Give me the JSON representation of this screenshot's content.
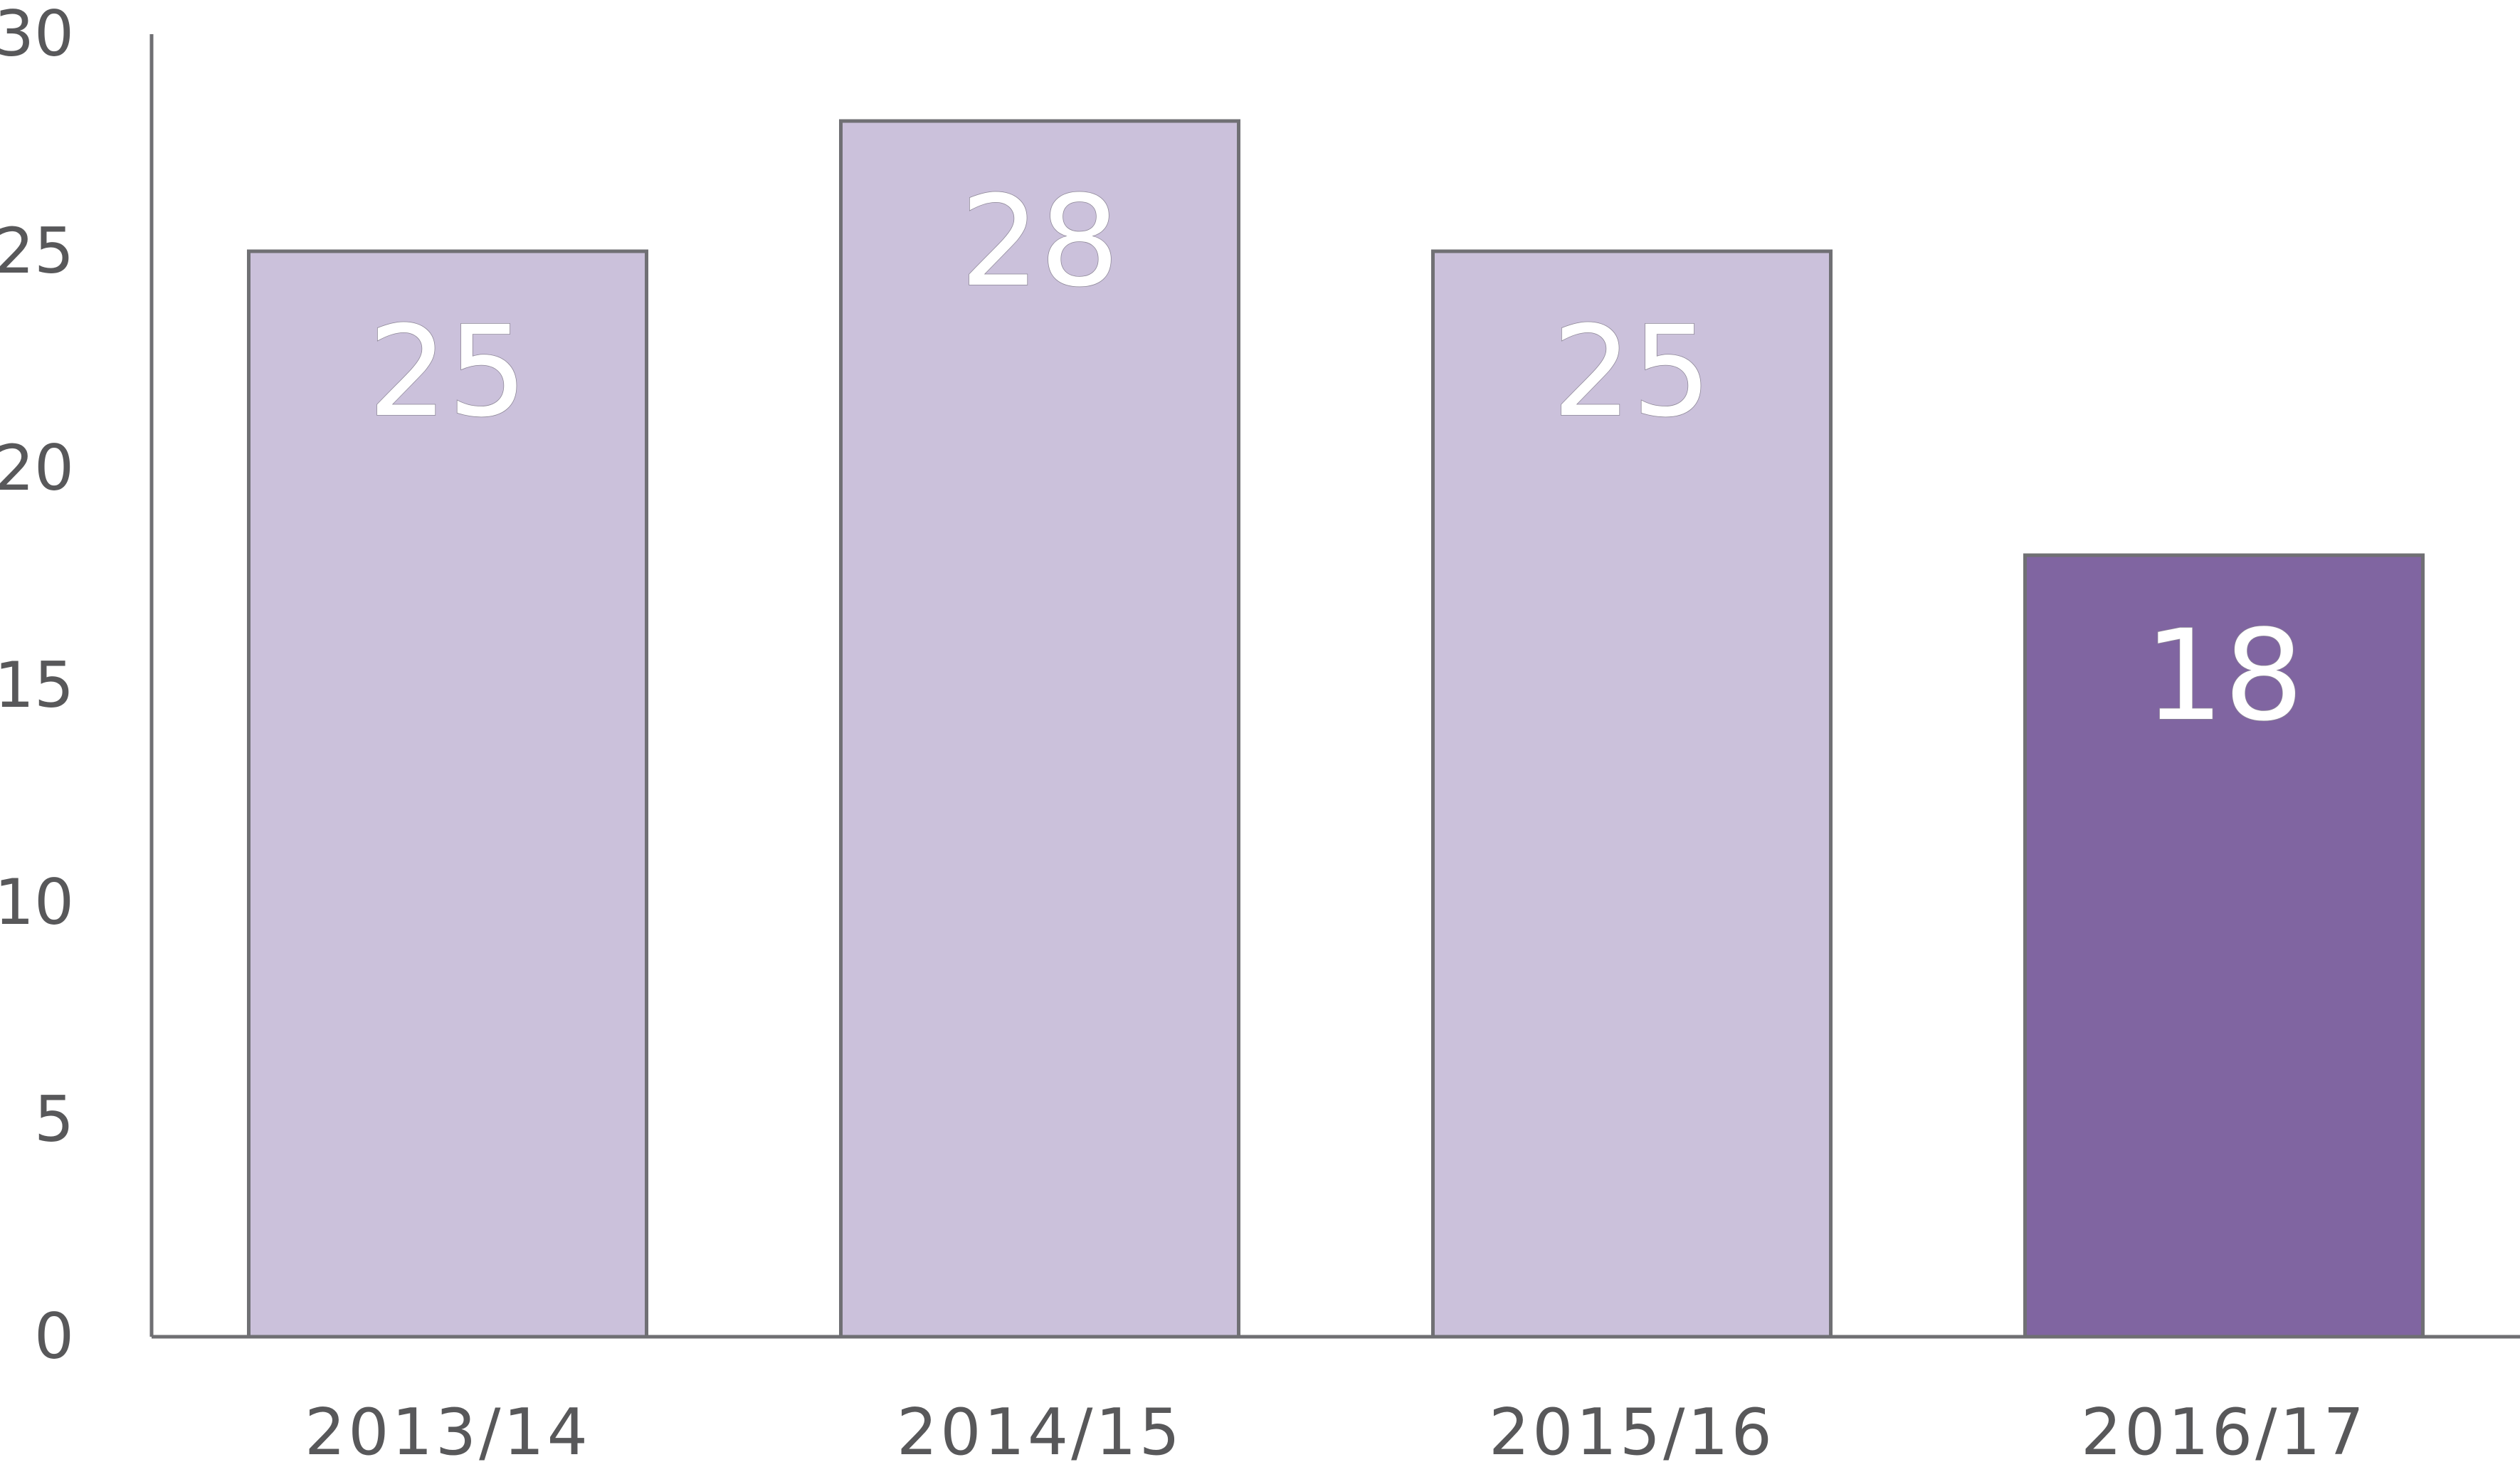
{
  "chart_data": {
    "type": "bar",
    "title": "",
    "xlabel": "",
    "ylabel": "",
    "categories": [
      "2013/14",
      "2014/15",
      "2015/16",
      "2016/17"
    ],
    "values": [
      25,
      28,
      25,
      18
    ],
    "data_labels": [
      "25",
      "28",
      "25",
      "18"
    ],
    "ylim": [
      0,
      30
    ],
    "yticks": [
      0,
      5,
      10,
      15,
      20,
      25,
      30
    ],
    "ytick_labels": [
      "0",
      "5",
      "10",
      "15",
      "20",
      "25",
      "30"
    ],
    "grid": false,
    "legend": "none",
    "bar_colors": [
      "#cbc1db",
      "#cbc1db",
      "#cbc1db",
      "#8065a1"
    ],
    "highlighted_category": "2016/17"
  }
}
